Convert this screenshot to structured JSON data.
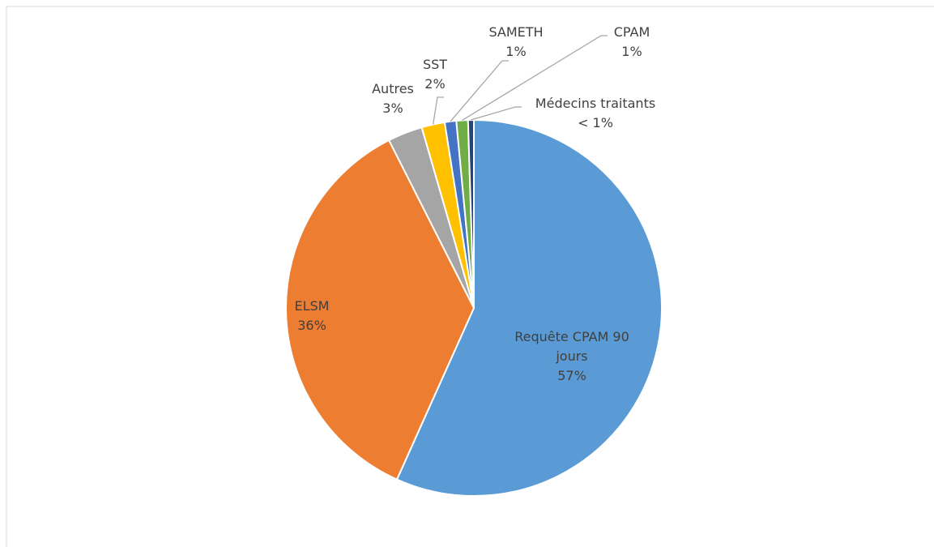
{
  "chart_data": {
    "type": "pie",
    "categories": [
      "Requête CPAM 90 jours",
      "ELSM",
      "Autres",
      "SST",
      "SAMETH",
      "CPAM",
      "Médecins traitants"
    ],
    "values": [
      57,
      36,
      3,
      2,
      1,
      1,
      0.5
    ],
    "value_labels": [
      "57%",
      "36%",
      "3%",
      "2%",
      "1%",
      "1%",
      "< 1%"
    ],
    "colors": [
      "#5b9bd5",
      "#ed7d31",
      "#a5a5a5",
      "#ffc000",
      "#4472c4",
      "#70ad47",
      "#264478"
    ]
  }
}
